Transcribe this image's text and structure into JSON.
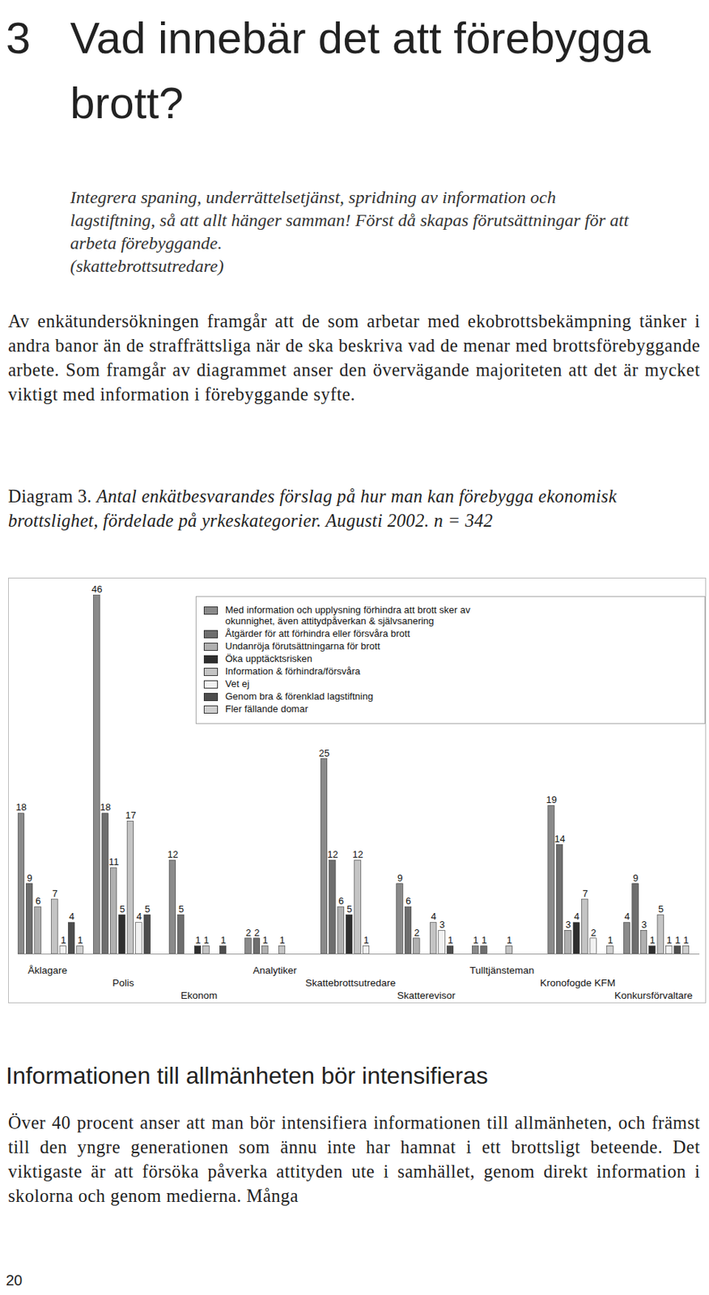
{
  "section_number": "3",
  "title": "Vad innebär det att förebygga brott?",
  "quote": {
    "text": "Integrera spaning, underrättelsetjänst, spridning av information och lagstiftning, så att allt hänger samman! Först då skapas förutsättningar för att arbeta förebyggande.",
    "source": "(skattebrottsutredare)"
  },
  "paragraphs": [
    "Av enkätundersökningen framgår att de som arbetar med ekobrottsbekämpning tänker i andra banor än de straffrättsliga när de ska beskriva vad de menar med brottsförebyggande arbete. Som framgår av diagrammet anser den övervägande majoriteten att det är mycket viktigt med information i förebyggande syfte."
  ],
  "caption": {
    "label": "Diagram 3.",
    "text": "Antal enkätbesvarandes förslag på hur man kan förebygga ekonomisk brottslighet, fördelade på yrkeskategorier. Augusti 2002. n = 342"
  },
  "chart_data": {
    "type": "bar",
    "categories": [
      "Åklagare",
      "Polis",
      "Ekonom",
      "Analytiker",
      "Skattebrottsutredare",
      "Skatterevisor",
      "Tulltjänsteman",
      "Kronofogde KFM",
      "Konkursförvaltare"
    ],
    "series": [
      {
        "name": "Med information och upplysning förhindra att brott sker av okunnighet, även attitydpåverkan & självsanering",
        "color": "#8a8a8a",
        "values": [
          18,
          46,
          12,
          2,
          25,
          9,
          1,
          19,
          4
        ]
      },
      {
        "name": "Åtgärder för att förhindra eller försvåra brott",
        "color": "#6e6e6e",
        "values": [
          9,
          18,
          5,
          2,
          12,
          6,
          1,
          14,
          9
        ]
      },
      {
        "name": "Undanröja förutsättningarna för brott",
        "color": "#b0b0b0",
        "values": [
          6,
          11,
          null,
          1,
          6,
          2,
          null,
          3,
          3
        ]
      },
      {
        "name": "Öka upptäcktsrisken",
        "color": "#2e2e2e",
        "values": [
          null,
          5,
          1,
          null,
          5,
          null,
          null,
          4,
          1
        ]
      },
      {
        "name": "Information & förhindra/försvåra",
        "color": "#c4c4c4",
        "values": [
          7,
          17,
          1,
          1,
          12,
          4,
          1,
          7,
          5
        ]
      },
      {
        "name": "Vet ej",
        "color": "#f2f2f2",
        "values": [
          1,
          4,
          null,
          null,
          1,
          3,
          null,
          2,
          1
        ]
      },
      {
        "name": "Genom bra & förenklad lagstiftning",
        "color": "#4d4d4d",
        "values": [
          4,
          5,
          1,
          null,
          null,
          1,
          null,
          null,
          1
        ]
      },
      {
        "name": "Fler fällande domar",
        "color": "#cfcfcf",
        "values": [
          1,
          null,
          null,
          null,
          null,
          null,
          null,
          1,
          1
        ]
      }
    ],
    "ylim": [
      0,
      46
    ],
    "tick_labels": false,
    "data_labels": true,
    "legend": "top-right"
  },
  "subheading": "Informationen till allmänheten bör intensifieras",
  "paragraphs2": [
    "Över 40 procent anser att man bör intensifiera informationen till allmänheten, och främst till den yngre generationen som ännu inte har hamnat i ett brottsligt beteende. Det viktigaste är att försöka påverka attityden ute i samhället, genom direkt information i skolorna och genom medierna. Många"
  ],
  "page_number": "20"
}
